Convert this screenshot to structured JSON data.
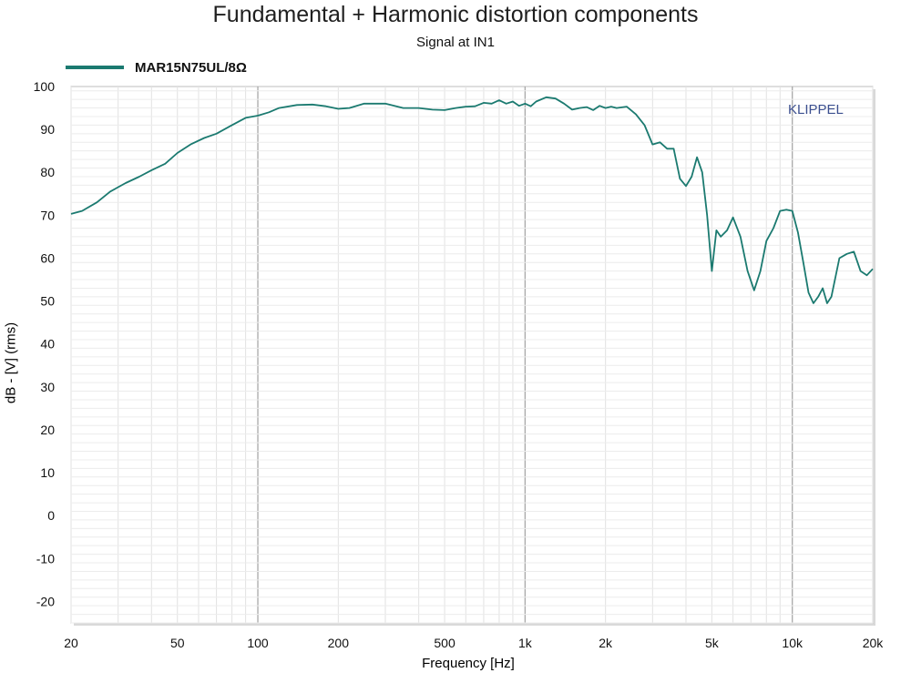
{
  "chart_data": {
    "type": "line",
    "title": "Fundamental + Harmonic distortion components",
    "subtitle": "Signal at IN1",
    "xlabel": "Frequency [Hz]",
    "ylabel": "dB - [V]  (rms)",
    "x_scale": "log",
    "xlim": [
      20,
      20000
    ],
    "ylim": [
      -25,
      100
    ],
    "x_ticks": [
      20,
      50,
      100,
      200,
      500,
      1000,
      2000,
      5000,
      10000,
      20000
    ],
    "x_tick_labels": [
      "20",
      "50",
      "100",
      "200",
      "500",
      "1k",
      "2k",
      "5k",
      "10k",
      "20k"
    ],
    "y_ticks": [
      100,
      90,
      80,
      70,
      60,
      50,
      40,
      30,
      20,
      10,
      0,
      -10,
      -20
    ],
    "grid": true,
    "legend_position": "top-left",
    "watermark": "KLIPPEL",
    "series": [
      {
        "name": "MAR15N75UL/8Ω",
        "color": "#1b7a70",
        "x": [
          20,
          22,
          25,
          28,
          32,
          36,
          40,
          45,
          50,
          56,
          63,
          70,
          80,
          90,
          100,
          110,
          120,
          140,
          160,
          180,
          200,
          220,
          250,
          300,
          350,
          400,
          450,
          500,
          550,
          600,
          650,
          700,
          750,
          800,
          850,
          900,
          950,
          1000,
          1050,
          1100,
          1200,
          1300,
          1400,
          1500,
          1600,
          1700,
          1800,
          1900,
          2000,
          2100,
          2200,
          2400,
          2600,
          2800,
          3000,
          3200,
          3400,
          3600,
          3800,
          4000,
          4200,
          4400,
          4600,
          4800,
          5000,
          5200,
          5400,
          5700,
          6000,
          6400,
          6800,
          7200,
          7600,
          8000,
          8500,
          9000,
          9500,
          10000,
          10500,
          11000,
          11500,
          12000,
          12500,
          13000,
          13500,
          14000,
          15000,
          16000,
          17000,
          18000,
          19000,
          20000
        ],
        "values": [
          70.3,
          71.0,
          73.0,
          75.5,
          77.5,
          79.0,
          80.5,
          82.0,
          84.5,
          86.5,
          88.0,
          89.0,
          91.0,
          92.7,
          93.2,
          94.0,
          95.0,
          95.7,
          95.8,
          95.4,
          94.8,
          95.0,
          96.0,
          96.0,
          95.0,
          95.0,
          94.6,
          94.5,
          95.0,
          95.3,
          95.4,
          96.2,
          96.0,
          96.8,
          96.0,
          96.5,
          95.5,
          96.0,
          95.4,
          96.5,
          97.5,
          97.2,
          96.0,
          94.6,
          95.0,
          95.2,
          94.5,
          95.5,
          95.0,
          95.3,
          95.0,
          95.3,
          93.5,
          91.0,
          86.5,
          87.0,
          85.5,
          85.5,
          78.5,
          76.8,
          79.0,
          83.5,
          80.0,
          70.0,
          57.0,
          66.5,
          65.0,
          66.5,
          69.5,
          65.0,
          57.0,
          52.5,
          57.0,
          64.0,
          67.0,
          71.0,
          71.3,
          71.0,
          66.0,
          59.0,
          52.0,
          49.5,
          51.0,
          53.0,
          49.5,
          51.0,
          60.0,
          61.0,
          61.5,
          57.0,
          56.0,
          57.5
        ]
      }
    ]
  }
}
